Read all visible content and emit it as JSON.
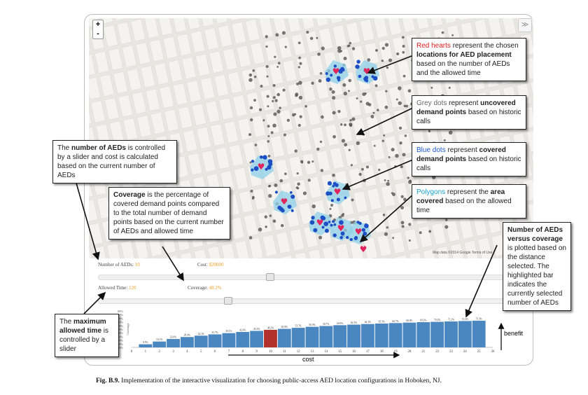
{
  "map": {
    "zoom_in": "+",
    "zoom_out": "-",
    "layers_icon": "layers-icon",
    "attribution": "Map data ©2014 Google   Terms of Use"
  },
  "callouts": {
    "red_hearts": {
      "c1": "Red hearts",
      "c2": " represent the chosen ",
      "c3": "locations for AED placement",
      "c4": " based on the number of AEDs and the allowed time"
    },
    "grey_dots": {
      "c1": "Grey dots",
      "c2": " represent ",
      "c3": "uncovered demand points",
      "c4": " based on historic calls"
    },
    "blue_dots": {
      "c1": "Blue dots",
      "c2": " represent ",
      "c3": "covered demand points",
      "c4": " based on historic calls"
    },
    "polygons": {
      "c1": "Polygons",
      "c2": " represent the ",
      "c3": "area covered",
      "c4": " based on the allowed time"
    },
    "num_aeds": {
      "c1": "The ",
      "c2": "number of AEDs",
      "c3": " is controlled by a slider and cost is calculated based on the current number of AEDs"
    },
    "coverage": {
      "c1": "Coverage",
      "c2": " is the percentage of covered demand points compared to the total number of demand points based on the current number of AEDs and allowed time"
    },
    "versus": {
      "c1": "Number of AEDs versus coverage",
      "c2": " is plotted based on the distance selected. The highlighted bar indicates the currently selected number of AEDs"
    },
    "max_time": {
      "c1": "The ",
      "c2": "maximum allowed time",
      "c3": " is controlled by a slider"
    }
  },
  "controls": {
    "aeds_label": "Number of AEDs:",
    "aeds_value": "10",
    "cost_label": "Cost:",
    "cost_value": "$20000",
    "time_label": "Allowed Time:",
    "time_value": "120",
    "coverage_label": "Coverage:",
    "coverage_value": "48.2%",
    "aeds_slider": 0.4,
    "time_slider": 0.3
  },
  "chart_labels": {
    "benefit": "benefit",
    "cost": "cost",
    "ylabel": "Coverage"
  },
  "caption": {
    "fig": "Fig. B.9.",
    "text": "  Implementation of the interactive visualization for choosing public-access AED location configurations in Hoboken, NJ."
  },
  "colors": {
    "bar": "#4a86c0",
    "highlight": "#b0322a",
    "heart": "#e0245e",
    "polygon": "#8fd0e8",
    "blue_dot": "#1c4fc4",
    "grey_dot": "#555555"
  },
  "chart_data": {
    "type": "bar",
    "categories": [
      "1",
      "2",
      "3",
      "4",
      "5",
      "6",
      "7",
      "8",
      "9",
      "10",
      "11",
      "12",
      "13",
      "14",
      "15",
      "16",
      "17",
      "18",
      "19",
      "20",
      "21",
      "22",
      "23",
      "24",
      "25"
    ],
    "values": [
      8.5,
      16.1,
      23.0,
      28.4,
      32.1,
      35.7,
      39.1,
      42.4,
      45.3,
      48.2,
      50.9,
      53.7,
      56.5,
      58.7,
      60.9,
      62.5,
      64.1,
      65.5,
      66.7,
      68.0,
      69.2,
      70.2,
      71.2,
      72.3,
      73.3
    ],
    "value_labels": [
      "8.5%",
      "16.1%",
      "23.0%",
      "28.4%",
      "32.1%",
      "35.7%",
      "39.1%",
      "42.4%",
      "45.3%",
      "48.2%",
      "50.9%",
      "53.7%",
      "56.5%",
      "58.7%",
      "60.9%",
      "62.5%",
      "64.1%",
      "65.5%",
      "66.7%",
      "68.0%",
      "69.2%",
      "70.2%",
      "71.2%",
      "72.3%",
      "73.3%"
    ],
    "x_ticks": [
      "0",
      "1",
      "2",
      "3",
      "4",
      "5",
      "6",
      "7",
      "8",
      "9",
      "10",
      "11",
      "12",
      "13",
      "14",
      "15",
      "16",
      "17",
      "18",
      "19",
      "20",
      "21",
      "22",
      "23",
      "24",
      "25",
      "26"
    ],
    "y_ticks": [
      "0%",
      "10%",
      "20%",
      "30%",
      "40%",
      "50%",
      "60%",
      "70%",
      "80%",
      "90%",
      "100%"
    ],
    "highlight_category": "10",
    "ylabel": "Coverage",
    "ylim": [
      0,
      100
    ]
  }
}
